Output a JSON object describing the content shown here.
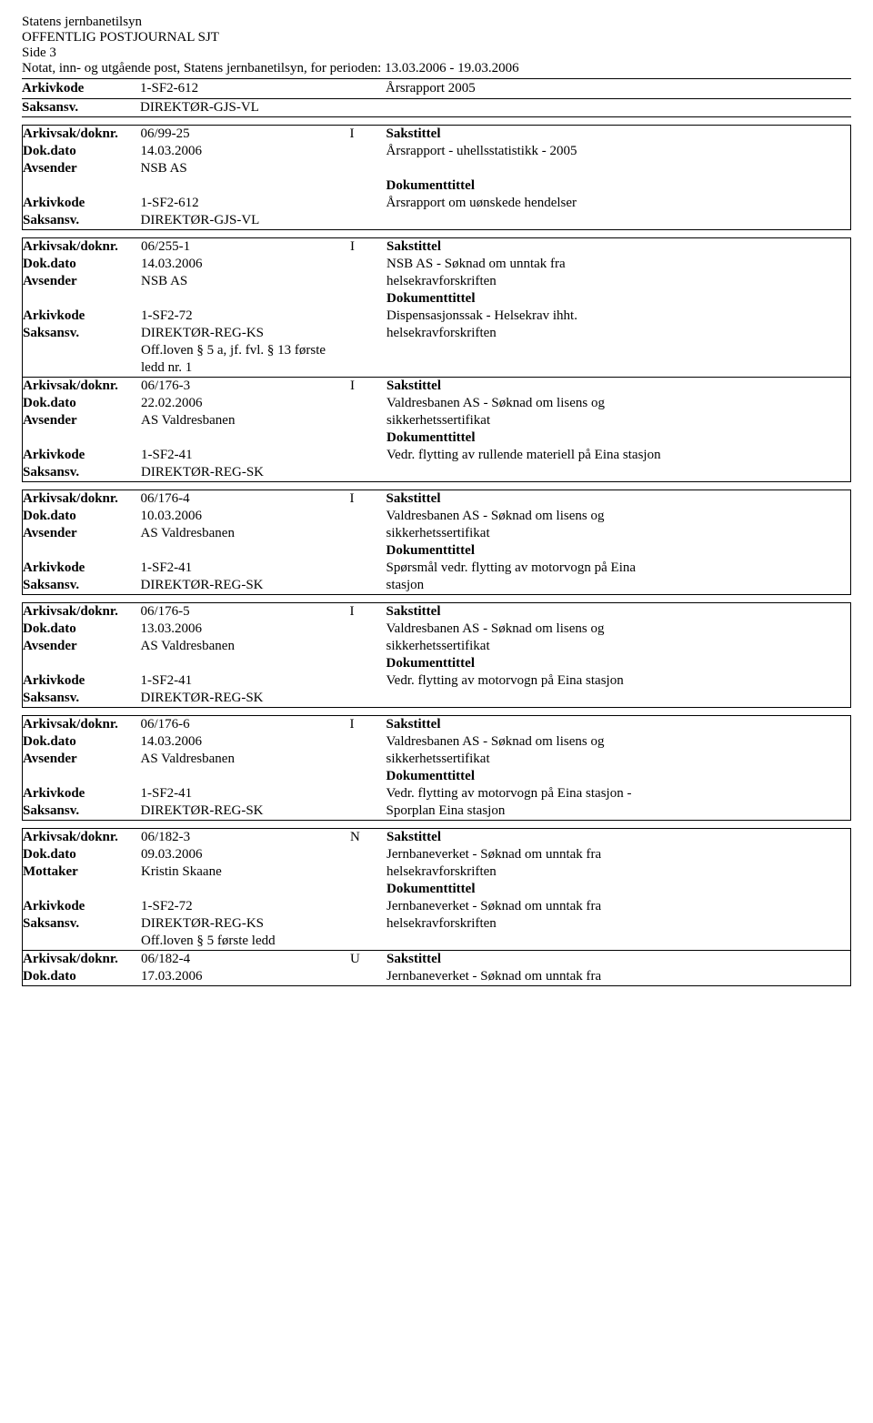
{
  "header": {
    "line1": "Statens jernbanetilsyn",
    "line2": "OFFENTLIG POSTJOURNAL SJT",
    "line3": "Side 3",
    "line4": "Notat, inn- og utgående post, Statens jernbanetilsyn, for perioden: 13.03.2006 - 19.03.2006"
  },
  "labels": {
    "arkivkode": "Arkivkode",
    "saksansv": "Saksansv.",
    "arkivsak": "Arkivsak/doknr.",
    "dokdato": "Dok.dato",
    "avsender": "Avsender",
    "mottaker": "Mottaker",
    "sakstittel": "Sakstittel",
    "dokumenttittel": "Dokumenttittel"
  },
  "toprow": {
    "arkivkode": "1-SF2-612",
    "saksansv": "DIREKTØR-GJS-VL",
    "right": "Årsrapport 2005"
  },
  "entries": [
    {
      "boxed": true,
      "arkivsak": "06/99-25",
      "type": "I",
      "dokdato": "14.03.2006",
      "party_label": "Avsender",
      "party": "NSB AS",
      "arkivkode": "1-SF2-612",
      "saksansv": "DIREKTØR-GJS-VL",
      "off": "",
      "sakstittel_line1": "",
      "sakstittel_line2": "Årsrapport - uhellsstatistikk - 2005",
      "sakstittel_line3": "",
      "dokteksthead": "Dokumenttittel",
      "doktekst_line1": "Årsrapport om uønskede hendelser",
      "doktekst_line2": ""
    }
  ],
  "group1": [
    {
      "arkivsak": "06/255-1",
      "type": "I",
      "dokdato": "14.03.2006",
      "party_label": "Avsender",
      "party": "NSB AS",
      "arkivkode": "1-SF2-72",
      "saksansv": "DIREKTØR-REG-KS",
      "off1": "Off.loven § 5 a, jf. fvl. § 13 første",
      "off2": "ledd nr. 1",
      "sakstittel_line2": "NSB AS - Søknad om unntak fra",
      "sakstittel_line3": "helsekravforskriften",
      "doktekst_line1": "Dispensasjonssak - Helsekrav ihht.",
      "doktekst_line2": "helsekravforskriften"
    },
    {
      "arkivsak": "06/176-3",
      "type": "I",
      "dokdato": "22.02.2006",
      "party_label": "Avsender",
      "party": "AS Valdresbanen",
      "arkivkode": "1-SF2-41",
      "saksansv": "DIREKTØR-REG-SK",
      "off1": "",
      "off2": "",
      "sakstittel_line2": "Valdresbanen AS - Søknad om lisens og",
      "sakstittel_line3": "sikkerhetssertifikat",
      "doktekst_line1": "Vedr. flytting av rullende materiell på Eina stasjon",
      "doktekst_line2": ""
    }
  ],
  "entries2": [
    {
      "boxed": true,
      "arkivsak": "06/176-4",
      "type": "I",
      "dokdato": "10.03.2006",
      "party_label": "Avsender",
      "party": "AS Valdresbanen",
      "arkivkode": "1-SF2-41",
      "saksansv": "DIREKTØR-REG-SK",
      "sakstittel_line2": "Valdresbanen AS - Søknad om lisens og",
      "sakstittel_line3": "sikkerhetssertifikat",
      "doktekst_line1": "Spørsmål vedr. flytting av motorvogn på Eina",
      "doktekst_line2": "stasjon"
    },
    {
      "boxed": true,
      "arkivsak": "06/176-5",
      "type": "I",
      "dokdato": "13.03.2006",
      "party_label": "Avsender",
      "party": "AS Valdresbanen",
      "arkivkode": "1-SF2-41",
      "saksansv": "DIREKTØR-REG-SK",
      "sakstittel_line2": "Valdresbanen AS - Søknad om lisens og",
      "sakstittel_line3": "sikkerhetssertifikat",
      "doktekst_line1": "Vedr. flytting av motorvogn på Eina stasjon",
      "doktekst_line2": ""
    },
    {
      "boxed": true,
      "arkivsak": "06/176-6",
      "type": "I",
      "dokdato": "14.03.2006",
      "party_label": "Avsender",
      "party": "AS Valdresbanen",
      "arkivkode": "1-SF2-41",
      "saksansv": "DIREKTØR-REG-SK",
      "sakstittel_line2": "Valdresbanen AS - Søknad om lisens og",
      "sakstittel_line3": "sikkerhetssertifikat",
      "doktekst_line1": "Vedr. flytting av motorvogn på Eina stasjon -",
      "doktekst_line2": "Sporplan Eina stasjon"
    }
  ],
  "group2": [
    {
      "arkivsak": "06/182-3",
      "type": "N",
      "dokdato": "09.03.2006",
      "party_label": "Mottaker",
      "party": "Kristin Skaane",
      "arkivkode": "1-SF2-72",
      "saksansv": "DIREKTØR-REG-KS",
      "off1": "Off.loven § 5 første ledd",
      "sakstittel_line2": "Jernbaneverket - Søknad om unntak fra",
      "sakstittel_line3": "helsekravforskriften",
      "doktekst_line1": "Jernbaneverket - Søknad om unntak fra",
      "doktekst_line2": "helsekravforskriften"
    },
    {
      "arkivsak": "06/182-4",
      "type": "U",
      "dokdato": "17.03.2006",
      "sakstittel_line2": "Jernbaneverket - Søknad om unntak fra",
      "short": true
    }
  ]
}
